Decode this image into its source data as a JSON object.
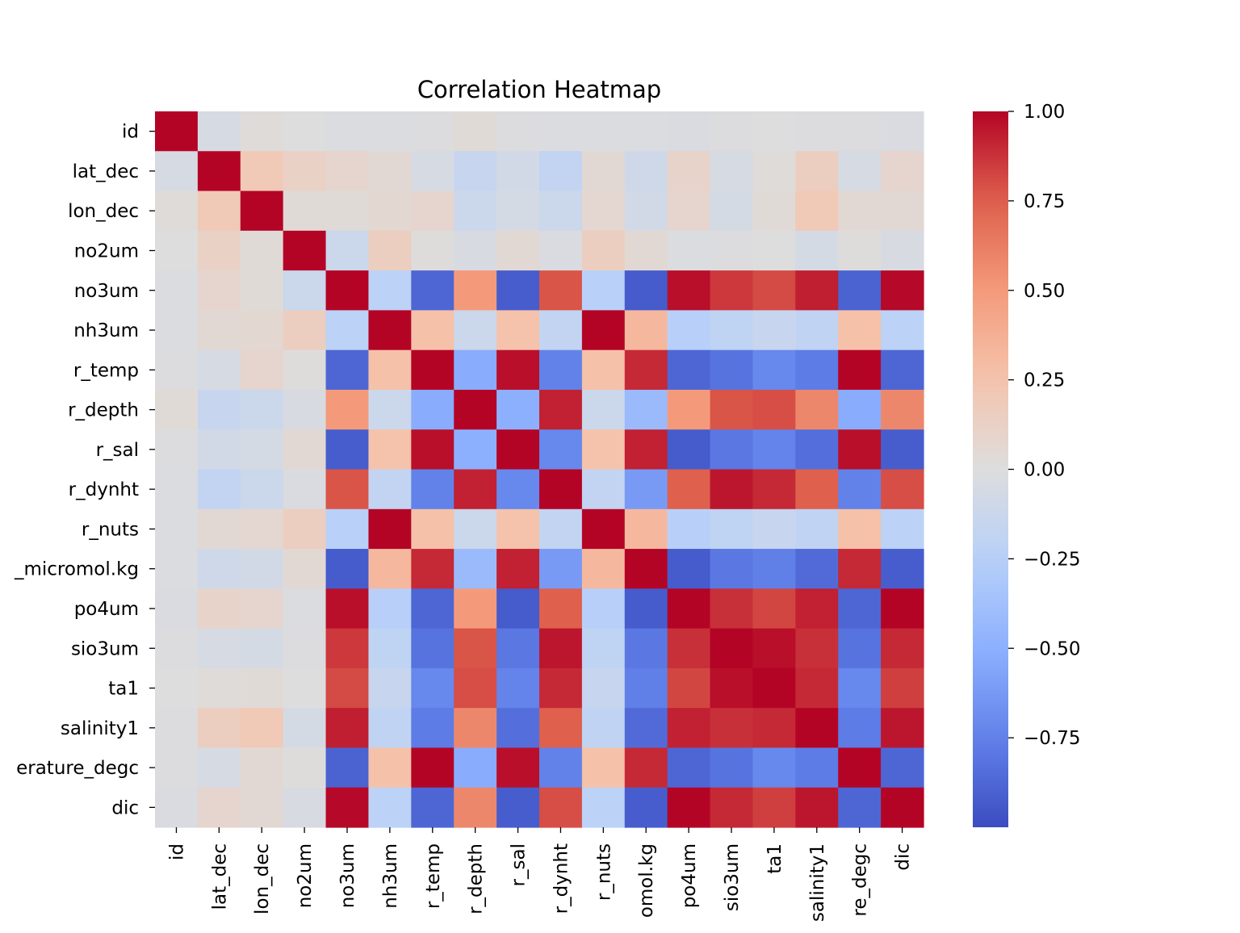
{
  "chart_data": {
    "type": "heatmap",
    "title": "Correlation Heatmap",
    "labels": [
      "id",
      "lat_dec",
      "lon_dec",
      "no2um",
      "no3um",
      "nh3um",
      "r_temp",
      "r_depth",
      "r_sal",
      "r_dynht",
      "r_nuts",
      "_micromol.kg",
      "po4um",
      "sio3um",
      "ta1",
      "salinity1",
      "erature_degc",
      "dic"
    ],
    "x_tick_labels": [
      "id",
      "lat_dec",
      "lon_dec",
      "no2um",
      "no3um",
      "nh3um",
      "r_temp",
      "r_depth",
      "r_sal",
      "r_dynht",
      "r_nuts",
      "omol.kg",
      "po4um",
      "sio3um",
      "ta1",
      "salinity1",
      "re_degc",
      "dic"
    ],
    "colorbar": {
      "colormap": "coolwarm",
      "vmin": -1.0,
      "vmax": 1.0,
      "ticks": [
        1.0,
        0.75,
        0.5,
        0.25,
        0.0,
        -0.25,
        -0.5,
        -0.75
      ],
      "tick_labels": [
        "1.00",
        "0.75",
        "0.50",
        "0.25",
        "0.00",
        "−0.25",
        "−0.50",
        "−0.75"
      ]
    },
    "matrix": [
      [
        1.0,
        -0.05,
        0.02,
        0.0,
        -0.02,
        -0.02,
        -0.01,
        0.03,
        -0.01,
        -0.02,
        -0.02,
        -0.02,
        -0.03,
        -0.01,
        0.0,
        -0.01,
        -0.01,
        -0.03
      ],
      [
        -0.05,
        1.0,
        0.2,
        0.12,
        0.08,
        0.05,
        -0.05,
        -0.15,
        -0.08,
        -0.18,
        0.05,
        -0.1,
        0.1,
        -0.05,
        0.02,
        0.15,
        -0.05,
        0.08
      ],
      [
        0.02,
        0.2,
        1.0,
        0.03,
        0.03,
        0.06,
        0.08,
        -0.12,
        -0.06,
        -0.12,
        0.07,
        -0.08,
        0.08,
        -0.06,
        0.03,
        0.2,
        0.05,
        0.05
      ],
      [
        0.0,
        0.12,
        0.03,
        1.0,
        -0.12,
        0.15,
        0.01,
        -0.04,
        0.05,
        -0.03,
        0.15,
        0.05,
        -0.02,
        -0.01,
        0.0,
        -0.06,
        0.01,
        -0.04
      ],
      [
        -0.02,
        0.08,
        0.03,
        -0.12,
        1.0,
        -0.22,
        -0.88,
        0.5,
        -0.92,
        0.78,
        -0.24,
        -0.93,
        0.97,
        0.86,
        0.81,
        0.93,
        -0.9,
        0.99
      ],
      [
        -0.02,
        0.05,
        0.06,
        0.15,
        -0.22,
        1.0,
        0.27,
        -0.12,
        0.26,
        -0.18,
        1.0,
        0.32,
        -0.25,
        -0.2,
        -0.15,
        -0.19,
        0.27,
        -0.22
      ],
      [
        -0.01,
        -0.05,
        0.08,
        0.01,
        -0.88,
        0.27,
        1.0,
        -0.52,
        0.97,
        -0.75,
        0.27,
        0.9,
        -0.88,
        -0.82,
        -0.72,
        -0.78,
        1.0,
        -0.88
      ],
      [
        0.03,
        -0.15,
        -0.12,
        -0.04,
        0.5,
        -0.12,
        -0.52,
        1.0,
        -0.5,
        0.92,
        -0.12,
        -0.42,
        0.5,
        0.78,
        0.8,
        0.58,
        -0.52,
        0.58
      ],
      [
        -0.01,
        -0.08,
        -0.06,
        0.05,
        -0.92,
        0.26,
        0.97,
        -0.5,
        1.0,
        -0.72,
        0.26,
        0.92,
        -0.93,
        -0.8,
        -0.74,
        -0.84,
        0.97,
        -0.92
      ],
      [
        -0.02,
        -0.18,
        -0.12,
        -0.03,
        0.78,
        -0.18,
        -0.75,
        0.92,
        -0.72,
        1.0,
        -0.18,
        -0.62,
        0.75,
        0.95,
        0.9,
        0.75,
        -0.75,
        0.8
      ],
      [
        -0.02,
        0.05,
        0.07,
        0.15,
        -0.24,
        1.0,
        0.27,
        -0.12,
        0.26,
        -0.18,
        1.0,
        0.32,
        -0.25,
        -0.2,
        -0.15,
        -0.19,
        0.27,
        -0.22
      ],
      [
        -0.02,
        -0.1,
        -0.08,
        0.05,
        -0.93,
        0.32,
        0.9,
        -0.42,
        0.92,
        -0.62,
        0.32,
        1.0,
        -0.93,
        -0.8,
        -0.76,
        -0.86,
        0.9,
        -0.92
      ],
      [
        -0.03,
        0.1,
        0.08,
        -0.02,
        0.97,
        -0.25,
        -0.88,
        0.5,
        -0.93,
        0.75,
        -0.25,
        -0.93,
        1.0,
        0.88,
        0.82,
        0.92,
        -0.88,
        1.0
      ],
      [
        -0.01,
        -0.05,
        -0.06,
        -0.01,
        0.86,
        -0.2,
        -0.82,
        0.78,
        -0.8,
        0.95,
        -0.2,
        -0.8,
        0.88,
        1.0,
        0.97,
        0.88,
        -0.82,
        0.9
      ],
      [
        0.0,
        0.02,
        0.03,
        0.0,
        0.81,
        -0.15,
        -0.72,
        0.8,
        -0.74,
        0.9,
        -0.15,
        -0.76,
        0.82,
        0.97,
        1.0,
        0.9,
        -0.72,
        0.84
      ],
      [
        -0.01,
        0.15,
        0.2,
        -0.06,
        0.93,
        -0.19,
        -0.78,
        0.58,
        -0.84,
        0.75,
        -0.19,
        -0.86,
        0.92,
        0.88,
        0.9,
        1.0,
        -0.78,
        0.95
      ],
      [
        -0.01,
        -0.05,
        0.05,
        0.01,
        -0.9,
        0.27,
        1.0,
        -0.52,
        0.97,
        -0.75,
        0.27,
        0.9,
        -0.88,
        -0.82,
        -0.72,
        -0.78,
        1.0,
        -0.88
      ],
      [
        -0.03,
        0.08,
        0.05,
        -0.04,
        0.99,
        -0.22,
        -0.88,
        0.58,
        -0.92,
        0.8,
        -0.22,
        -0.92,
        1.0,
        0.9,
        0.84,
        0.95,
        -0.88,
        1.0
      ]
    ]
  }
}
